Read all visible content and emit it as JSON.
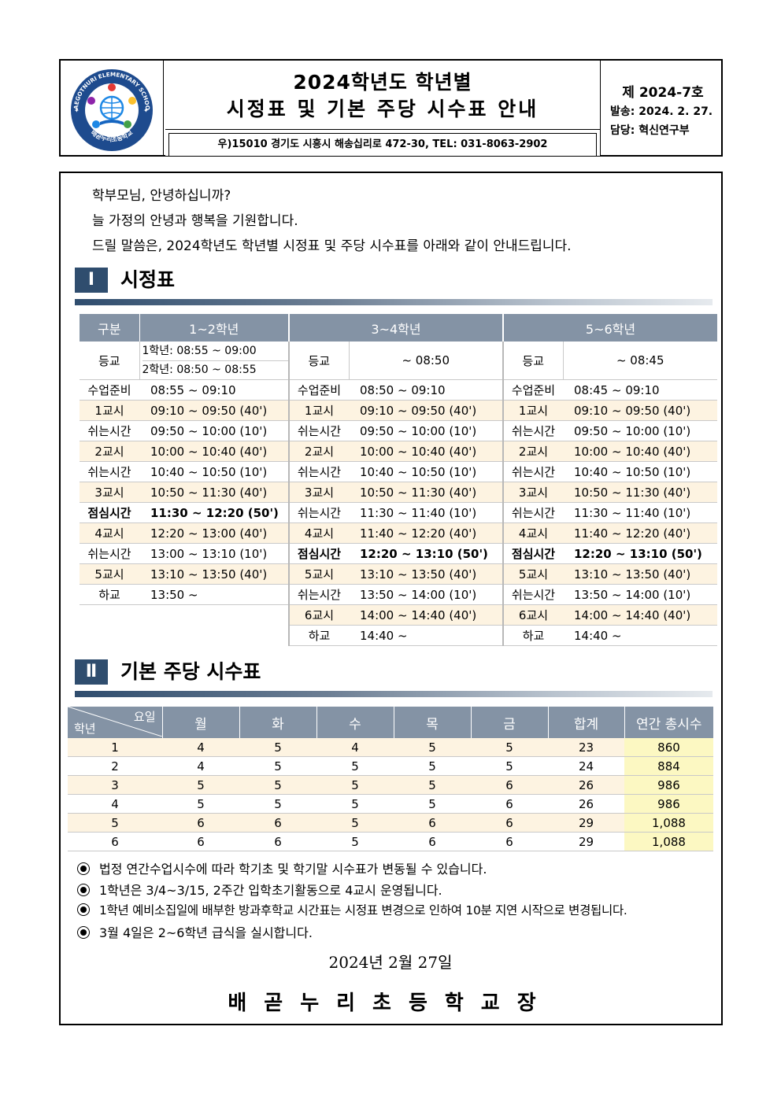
{
  "header": {
    "logo_text_top": "BAEGOTNURI ELEMENTARY SCHOOL",
    "logo_text_bottom": "배곧누리초등학교",
    "title_line1": "2024학년도 학년별",
    "title_line2": "시정표 및 기본 주당 시수표 안내",
    "address": "우)15010 경기도 시흥시 해송십리로 472-30, TEL: 031-8063-2902",
    "doc_no": "제 2024-7호",
    "sent": "발송: 2024. 2. 27.",
    "dept": "담당: 혁신연구부"
  },
  "greeting": [
    "학부모님, 안녕하십니까?",
    "늘 가정의 안녕과 행복을 기원합니다.",
    "드릴 말씀은, 2024학년도 학년별 시정표 및 주당 시수표를 아래와 같이 안내드립니다."
  ],
  "section1": {
    "num": "Ⅰ",
    "title": "시정표"
  },
  "schedule": {
    "headers": [
      "구분",
      "1~2학년",
      "3~4학년",
      "5~6학년"
    ],
    "arrival": {
      "label": "등교",
      "g12_line1": "1학년: 08:55 ~ 09:00",
      "g12_line2": "2학년: 08:50 ~ 08:55",
      "g34": "~ 08:50",
      "g56": "~ 08:45"
    },
    "rows": [
      {
        "a": [
          "수업준비",
          "08:55 ~ 09:10"
        ],
        "b": [
          "수업준비",
          "08:50 ~ 09:10"
        ],
        "c": [
          "수업준비",
          "08:45 ~ 09:10"
        ]
      },
      {
        "a": [
          "1교시",
          "09:10 ~ 09:50 (40')"
        ],
        "b": [
          "1교시",
          "09:10 ~ 09:50 (40')"
        ],
        "c": [
          "1교시",
          "09:10 ~ 09:50 (40')"
        ]
      },
      {
        "a": [
          "쉬는시간",
          "09:50 ~ 10:00 (10')"
        ],
        "b": [
          "쉬는시간",
          "09:50 ~ 10:00 (10')"
        ],
        "c": [
          "쉬는시간",
          "09:50 ~ 10:00 (10')"
        ]
      },
      {
        "a": [
          "2교시",
          "10:00 ~ 10:40 (40')"
        ],
        "b": [
          "2교시",
          "10:00 ~ 10:40 (40')"
        ],
        "c": [
          "2교시",
          "10:00 ~ 10:40 (40')"
        ]
      },
      {
        "a": [
          "쉬는시간",
          "10:40 ~ 10:50 (10')"
        ],
        "b": [
          "쉬는시간",
          "10:40 ~ 10:50 (10')"
        ],
        "c": [
          "쉬는시간",
          "10:40 ~ 10:50 (10')"
        ]
      },
      {
        "a": [
          "3교시",
          "10:50 ~ 11:30 (40')"
        ],
        "b": [
          "3교시",
          "10:50 ~ 11:30 (40')"
        ],
        "c": [
          "3교시",
          "10:50 ~ 11:30 (40')"
        ]
      },
      {
        "a": [
          "점심시간",
          "11:30 ~ 12:20 (50')"
        ],
        "b": [
          "쉬는시간",
          "11:30 ~ 11:40 (10')"
        ],
        "c": [
          "쉬는시간",
          "11:30 ~ 11:40 (10')"
        ]
      },
      {
        "a": [
          "4교시",
          "12:20 ~ 13:00 (40')"
        ],
        "b": [
          "4교시",
          "11:40 ~ 12:20 (40')"
        ],
        "c": [
          "4교시",
          "11:40 ~ 12:20 (40')"
        ]
      },
      {
        "a": [
          "쉬는시간",
          "13:00 ~ 13:10 (10')"
        ],
        "b": [
          "점심시간",
          "12:20 ~ 13:10 (50')"
        ],
        "c": [
          "점심시간",
          "12:20 ~ 13:10 (50')"
        ]
      },
      {
        "a": [
          "5교시",
          "13:10 ~ 13:50 (40')"
        ],
        "b": [
          "5교시",
          "13:10 ~ 13:50 (40')"
        ],
        "c": [
          "5교시",
          "13:10 ~ 13:50 (40')"
        ]
      },
      {
        "a": [
          "하교",
          "13:50 ~"
        ],
        "b": [
          "쉬는시간",
          "13:50 ~ 14:00 (10')"
        ],
        "c": [
          "쉬는시간",
          "13:50 ~ 14:00 (10')"
        ]
      },
      {
        "a": [
          "",
          ""
        ],
        "b": [
          "6교시",
          "14:00 ~ 14:40 (40')"
        ],
        "c": [
          "6교시",
          "14:00 ~ 14:40 (40')"
        ]
      },
      {
        "a": [
          "",
          ""
        ],
        "b": [
          "하교",
          "14:40 ~"
        ],
        "c": [
          "하교",
          "14:40 ~"
        ]
      }
    ]
  },
  "section2": {
    "num": "Ⅱ",
    "title": "기본 주당 시수표"
  },
  "weekly": {
    "corner_top": "요일",
    "corner_bottom": "학년",
    "headers": [
      "월",
      "화",
      "수",
      "목",
      "금",
      "합계",
      "연간 총시수"
    ],
    "rows": [
      [
        "1",
        "4",
        "5",
        "4",
        "5",
        "5",
        "23",
        "860"
      ],
      [
        "2",
        "4",
        "5",
        "5",
        "5",
        "5",
        "24",
        "884"
      ],
      [
        "3",
        "5",
        "5",
        "5",
        "5",
        "6",
        "26",
        "986"
      ],
      [
        "4",
        "5",
        "5",
        "5",
        "5",
        "6",
        "26",
        "986"
      ],
      [
        "5",
        "6",
        "6",
        "5",
        "6",
        "6",
        "29",
        "1,088"
      ],
      [
        "6",
        "6",
        "6",
        "5",
        "6",
        "6",
        "29",
        "1,088"
      ]
    ]
  },
  "notes": [
    "법정 연간수업시수에 따라 학기초 및 학기말 시수표가 변동될 수 있습니다.",
    "1학년은 3/4~3/15, 2주간 입학초기활동으로 4교시 운영됩니다.",
    "1학년 예비소집일에 배부한 방과후학교 시간표는 시정표 변경으로 인하여 10분 지연 시작으로 변경됩니다.",
    "3월 4일은 2~6학년 급식을 실시합니다."
  ],
  "date": "2024년 2월 27일",
  "signature": "배곧누리초등학교장",
  "colors": {
    "header_blue": "#2f4d6e",
    "table_header": "#8493a5",
    "alt_row": "#fdf3e1",
    "yellow": "#fcf8c2"
  }
}
